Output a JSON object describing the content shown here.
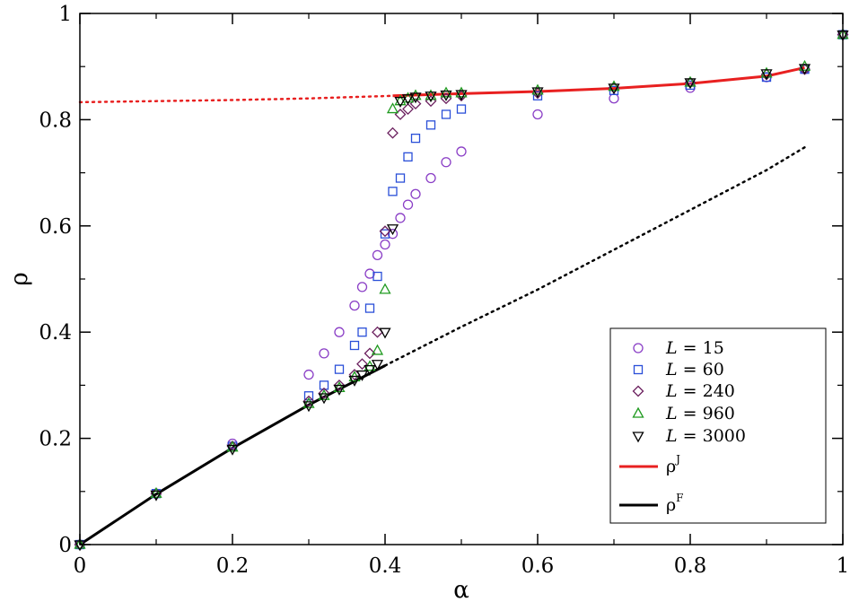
{
  "chart_data": {
    "type": "scatter",
    "xlabel": "α",
    "ylabel": "ρ",
    "xlim": [
      0,
      1
    ],
    "ylim": [
      0,
      1
    ],
    "xticks": [
      "0",
      "0.2",
      "0.4",
      "0.6",
      "0.8",
      "1"
    ],
    "yticks": [
      "0",
      "0.2",
      "0.4",
      "0.6",
      "0.8",
      "1"
    ],
    "legend_position": "bottom-right",
    "series": [
      {
        "name": "L = 15",
        "legend_var": "L",
        "legend_rest": " = 15",
        "marker": "circle",
        "color": "#8a3ec6",
        "points": [
          [
            0,
            0
          ],
          [
            0.1,
            0.096
          ],
          [
            0.2,
            0.19
          ],
          [
            0.3,
            0.32
          ],
          [
            0.32,
            0.36
          ],
          [
            0.34,
            0.4
          ],
          [
            0.36,
            0.45
          ],
          [
            0.37,
            0.485
          ],
          [
            0.38,
            0.51
          ],
          [
            0.39,
            0.545
          ],
          [
            0.4,
            0.565
          ],
          [
            0.41,
            0.585
          ],
          [
            0.42,
            0.615
          ],
          [
            0.43,
            0.64
          ],
          [
            0.44,
            0.66
          ],
          [
            0.46,
            0.69
          ],
          [
            0.48,
            0.72
          ],
          [
            0.5,
            0.74
          ],
          [
            0.6,
            0.81
          ],
          [
            0.7,
            0.84
          ],
          [
            0.8,
            0.86
          ],
          [
            0.9,
            0.88
          ],
          [
            0.95,
            0.895
          ],
          [
            1.0,
            0.96
          ]
        ]
      },
      {
        "name": "L = 60",
        "legend_var": "L",
        "legend_rest": " = 60",
        "marker": "square",
        "color": "#2a4fd8",
        "points": [
          [
            0,
            0
          ],
          [
            0.1,
            0.096
          ],
          [
            0.2,
            0.185
          ],
          [
            0.3,
            0.28
          ],
          [
            0.32,
            0.3
          ],
          [
            0.34,
            0.33
          ],
          [
            0.36,
            0.375
          ],
          [
            0.37,
            0.4
          ],
          [
            0.38,
            0.445
          ],
          [
            0.39,
            0.505
          ],
          [
            0.4,
            0.585
          ],
          [
            0.41,
            0.665
          ],
          [
            0.42,
            0.69
          ],
          [
            0.43,
            0.73
          ],
          [
            0.44,
            0.765
          ],
          [
            0.46,
            0.79
          ],
          [
            0.48,
            0.81
          ],
          [
            0.5,
            0.82
          ],
          [
            0.6,
            0.845
          ],
          [
            0.7,
            0.855
          ],
          [
            0.8,
            0.865
          ],
          [
            0.9,
            0.88
          ],
          [
            0.95,
            0.895
          ],
          [
            1.0,
            0.96
          ]
        ]
      },
      {
        "name": "L = 240",
        "legend_var": "L",
        "legend_rest": " = 240",
        "marker": "diamond",
        "color": "#6b1f5e",
        "points": [
          [
            0,
            0
          ],
          [
            0.1,
            0.096
          ],
          [
            0.2,
            0.185
          ],
          [
            0.3,
            0.27
          ],
          [
            0.32,
            0.285
          ],
          [
            0.34,
            0.3
          ],
          [
            0.36,
            0.32
          ],
          [
            0.37,
            0.34
          ],
          [
            0.38,
            0.36
          ],
          [
            0.39,
            0.4
          ],
          [
            0.4,
            0.59
          ],
          [
            0.41,
            0.775
          ],
          [
            0.42,
            0.81
          ],
          [
            0.43,
            0.82
          ],
          [
            0.44,
            0.83
          ],
          [
            0.46,
            0.835
          ],
          [
            0.48,
            0.84
          ],
          [
            0.5,
            0.845
          ],
          [
            0.6,
            0.85
          ],
          [
            0.7,
            0.86
          ],
          [
            0.8,
            0.87
          ],
          [
            0.9,
            0.885
          ],
          [
            0.95,
            0.895
          ],
          [
            1.0,
            0.96
          ]
        ]
      },
      {
        "name": "L = 960",
        "legend_var": "L",
        "legend_rest": " = 960",
        "marker": "triangle-up",
        "color": "#1f9a1f",
        "points": [
          [
            0,
            0
          ],
          [
            0.1,
            0.096
          ],
          [
            0.2,
            0.183
          ],
          [
            0.3,
            0.265
          ],
          [
            0.32,
            0.28
          ],
          [
            0.34,
            0.295
          ],
          [
            0.36,
            0.315
          ],
          [
            0.38,
            0.335
          ],
          [
            0.39,
            0.365
          ],
          [
            0.4,
            0.48
          ],
          [
            0.41,
            0.82
          ],
          [
            0.42,
            0.835
          ],
          [
            0.43,
            0.84
          ],
          [
            0.44,
            0.845
          ],
          [
            0.46,
            0.845
          ],
          [
            0.48,
            0.85
          ],
          [
            0.5,
            0.85
          ],
          [
            0.6,
            0.855
          ],
          [
            0.7,
            0.862
          ],
          [
            0.8,
            0.87
          ],
          [
            0.9,
            0.887
          ],
          [
            0.95,
            0.9
          ],
          [
            1.0,
            0.96
          ]
        ]
      },
      {
        "name": "L = 3000",
        "legend_var": "L",
        "legend_rest": " = 3000",
        "marker": "triangle-down",
        "color": "#000000",
        "points": [
          [
            0,
            0
          ],
          [
            0.1,
            0.094
          ],
          [
            0.2,
            0.18
          ],
          [
            0.3,
            0.262
          ],
          [
            0.32,
            0.277
          ],
          [
            0.34,
            0.293
          ],
          [
            0.36,
            0.31
          ],
          [
            0.37,
            0.32
          ],
          [
            0.38,
            0.33
          ],
          [
            0.39,
            0.34
          ],
          [
            0.4,
            0.4
          ],
          [
            0.41,
            0.595
          ],
          [
            0.42,
            0.835
          ],
          [
            0.43,
            0.84
          ],
          [
            0.44,
            0.843
          ],
          [
            0.46,
            0.845
          ],
          [
            0.48,
            0.847
          ],
          [
            0.5,
            0.848
          ],
          [
            0.6,
            0.853
          ],
          [
            0.7,
            0.86
          ],
          [
            0.8,
            0.87
          ],
          [
            0.9,
            0.887
          ],
          [
            0.95,
            0.897
          ],
          [
            1.0,
            0.96
          ]
        ]
      }
    ],
    "curves": [
      {
        "name": "ρJ",
        "legend_base": "ρ",
        "legend_sup": "J",
        "color": "#e82020",
        "solid": [
          [
            0.41,
            0.845
          ],
          [
            0.5,
            0.849
          ],
          [
            0.6,
            0.853
          ],
          [
            0.7,
            0.859
          ],
          [
            0.8,
            0.868
          ],
          [
            0.9,
            0.882
          ],
          [
            0.95,
            0.898
          ]
        ],
        "dotted": [
          [
            0,
            0.833
          ],
          [
            0.1,
            0.835
          ],
          [
            0.2,
            0.837
          ],
          [
            0.3,
            0.84
          ],
          [
            0.41,
            0.845
          ]
        ]
      },
      {
        "name": "ρF",
        "legend_base": "ρ",
        "legend_sup": "F",
        "color": "#000000",
        "solid": [
          [
            0,
            0
          ],
          [
            0.1,
            0.095
          ],
          [
            0.2,
            0.182
          ],
          [
            0.3,
            0.263
          ],
          [
            0.35,
            0.3
          ],
          [
            0.4,
            0.337
          ]
        ],
        "dotted": [
          [
            0.4,
            0.337
          ],
          [
            0.5,
            0.41
          ],
          [
            0.6,
            0.48
          ],
          [
            0.7,
            0.555
          ],
          [
            0.8,
            0.63
          ],
          [
            0.9,
            0.705
          ],
          [
            0.95,
            0.748
          ]
        ]
      }
    ]
  }
}
